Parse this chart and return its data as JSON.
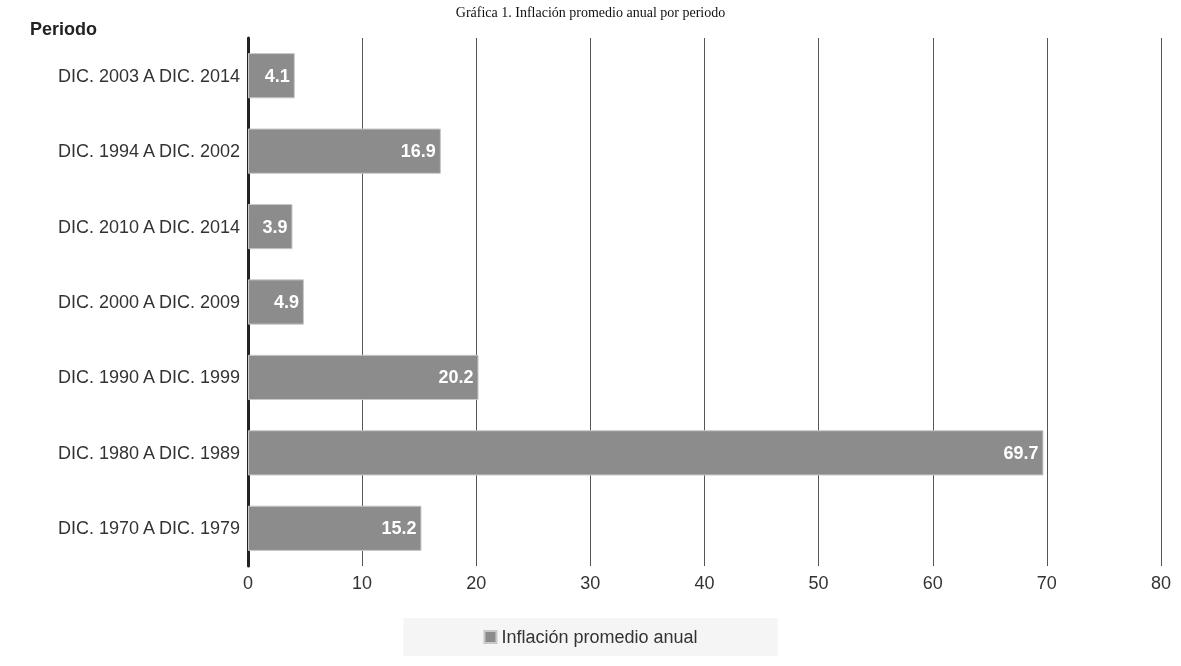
{
  "chart_data": {
    "type": "bar",
    "orientation": "horizontal",
    "title": "Gráfica 1. Inflación promedio anual por periodo",
    "ylabel": "Periodo",
    "categories": [
      "DIC. 2003 A DIC. 2014",
      "DIC. 1994 A DIC. 2002",
      "DIC. 2010 A DIC. 2014",
      "DIC. 2000 A DIC. 2009",
      "DIC. 1990 A DIC. 1999",
      "DIC. 1980 A DIC. 1989",
      "DIC. 1970 A DIC. 1979"
    ],
    "series": [
      {
        "name": "Inflación promedio anual",
        "color": "#8c8c8c",
        "values": [
          4.1,
          16.9,
          3.9,
          4.9,
          20.2,
          69.7,
          15.2
        ]
      }
    ],
    "xlim": [
      0,
      80
    ],
    "xticks": [
      0,
      10,
      20,
      30,
      40,
      50,
      60,
      70,
      80
    ],
    "grid": "x",
    "legend": "bottom",
    "data_labels": true
  }
}
